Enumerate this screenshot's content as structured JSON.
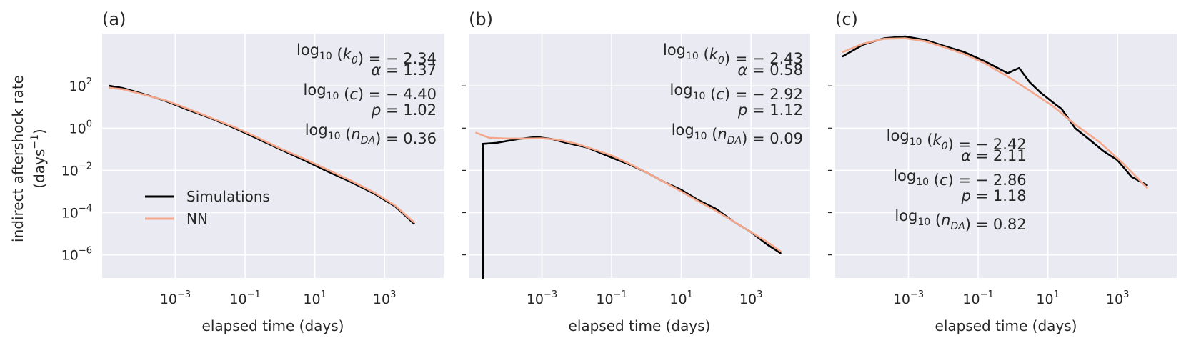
{
  "chart_data": [
    {
      "type": "line",
      "panel": "(a)",
      "xscale": "log",
      "yscale": "log",
      "xlabel": "elapsed time (days)",
      "ylabel": "indirect aftershock rate",
      "ylabel_unit": "(days",
      "ylabel_unit_exp": "−1",
      "ylabel_unit_close": ")",
      "xlim": [
        7.9e-06,
        50000
      ],
      "ylim": [
        8e-08,
        30000
      ],
      "xticks_exp": [
        "−3",
        "−1",
        "1",
        "3"
      ],
      "yticks_exp": [
        "2",
        "0",
        "−2",
        "−4",
        "−6"
      ],
      "show_ytick_labels": true,
      "legend": {
        "position": "lower-left",
        "entries": [
          "Simulations",
          "NN"
        ]
      },
      "annotation_position": "top-right",
      "annotation": [
        {
          "pre": "log",
          "sub": "10",
          "paren": "(k",
          "psub": "0",
          "close": ")",
          "rest": " = − 2.34"
        },
        {
          "pre": "α",
          "sub": "",
          "paren": "",
          "psub": "",
          "close": "",
          "rest": " = 1.37"
        },
        {
          "pre": "log",
          "sub": "10",
          "paren": "(c",
          "psub": "",
          "close": ")",
          "rest": " = − 4.40"
        },
        {
          "pre": "p",
          "sub": "",
          "paren": "",
          "psub": "",
          "close": "",
          "rest": " = 1.02"
        },
        {
          "pre": "log",
          "sub": "10",
          "paren": "(n",
          "psub": "DA",
          "close": ")",
          "rest": " = 0.36"
        }
      ],
      "series": [
        {
          "name": "Simulations",
          "color": "#000000",
          "x": [
            1.3e-05,
            3e-05,
            0.0001,
            0.0005,
            0.002,
            0.01,
            0.05,
            0.2,
            1,
            5,
            20,
            100,
            500,
            2000,
            7000
          ],
          "y": [
            100,
            80,
            45,
            20,
            8,
            3,
            1,
            0.35,
            0.1,
            0.03,
            0.01,
            0.003,
            0.0008,
            0.0002,
            3e-05
          ]
        },
        {
          "name": "NN",
          "color": "#f4a78b",
          "x": [
            1.3e-05,
            3e-05,
            0.0001,
            0.0005,
            0.002,
            0.01,
            0.05,
            0.2,
            1,
            5,
            20,
            100,
            500,
            2000,
            7000
          ],
          "y": [
            80,
            70,
            42,
            21,
            9,
            3.2,
            1.1,
            0.4,
            0.11,
            0.035,
            0.012,
            0.0035,
            0.0009,
            0.00022,
            3.5e-05
          ]
        }
      ]
    },
    {
      "type": "line",
      "panel": "(b)",
      "xscale": "log",
      "yscale": "log",
      "xlabel": "elapsed time (days)",
      "xlim": [
        7.9e-06,
        50000
      ],
      "ylim": [
        8e-08,
        30000
      ],
      "xticks_exp": [
        "−3",
        "−1",
        "1",
        "3"
      ],
      "yticks_exp": [
        "2",
        "0",
        "−2",
        "−4",
        "−6"
      ],
      "show_ytick_labels": false,
      "annotation_position": "top-right",
      "annotation": [
        {
          "pre": "log",
          "sub": "10",
          "paren": "(k",
          "psub": "0",
          "close": ")",
          "rest": " = − 2.43"
        },
        {
          "pre": "α",
          "sub": "",
          "paren": "",
          "psub": "",
          "close": "",
          "rest": " = 0.58"
        },
        {
          "pre": "log",
          "sub": "10",
          "paren": "(c",
          "psub": "",
          "close": ")",
          "rest": " = − 2.92"
        },
        {
          "pre": "p",
          "sub": "",
          "paren": "",
          "psub": "",
          "close": "",
          "rest": " = 1.12"
        },
        {
          "pre": "log",
          "sub": "10",
          "paren": "(n",
          "psub": "DA",
          "close": ")",
          "rest": " = 0.09"
        }
      ],
      "series": [
        {
          "name": "Simulations",
          "color": "#000000",
          "x": [
            2e-05,
            2e-05,
            5e-05,
            0.0002,
            0.0007,
            0.002,
            0.005,
            0.02,
            0.1,
            0.3,
            1,
            3,
            10,
            30,
            100,
            300,
            1000,
            3000,
            7000
          ],
          "y": [
            8e-08,
            0.18,
            0.2,
            0.3,
            0.38,
            0.3,
            0.2,
            0.12,
            0.04,
            0.02,
            0.008,
            0.003,
            0.0012,
            0.0004,
            0.00015,
            4e-05,
            1.2e-05,
            3e-06,
            1.2e-06
          ]
        },
        {
          "name": "NN",
          "color": "#f4a78b",
          "x": [
            1.3e-05,
            3e-05,
            0.0001,
            0.0003,
            0.001,
            0.003,
            0.01,
            0.03,
            0.1,
            0.3,
            1,
            3,
            10,
            30,
            100,
            300,
            1000,
            3000,
            7000
          ],
          "y": [
            0.6,
            0.35,
            0.32,
            0.32,
            0.33,
            0.28,
            0.18,
            0.1,
            0.05,
            0.022,
            0.008,
            0.003,
            0.001,
            0.00035,
            0.00012,
            4e-05,
            1.2e-05,
            4e-06,
            1.5e-06
          ]
        }
      ]
    },
    {
      "type": "line",
      "panel": "(c)",
      "xscale": "log",
      "yscale": "log",
      "xlabel": "elapsed time (days)",
      "xlim": [
        7.9e-06,
        50000
      ],
      "ylim": [
        8e-08,
        30000
      ],
      "xticks_exp": [
        "−3",
        "−1",
        "1",
        "3"
      ],
      "yticks_exp": [
        "2",
        "0",
        "−2",
        "−4",
        "−6"
      ],
      "show_ytick_labels": false,
      "annotation_position": "middle-center",
      "annotation": [
        {
          "pre": "log",
          "sub": "10",
          "paren": "(k",
          "psub": "0",
          "close": ")",
          "rest": " = − 2.42"
        },
        {
          "pre": "α",
          "sub": "",
          "paren": "",
          "psub": "",
          "close": "",
          "rest": " = 2.11"
        },
        {
          "pre": "log",
          "sub": "10",
          "paren": "(c",
          "psub": "",
          "close": ")",
          "rest": " = − 2.86"
        },
        {
          "pre": "p",
          "sub": "",
          "paren": "",
          "psub": "",
          "close": "",
          "rest": " = 1.18"
        },
        {
          "pre": "log",
          "sub": "10",
          "paren": "(n",
          "psub": "DA",
          "close": ")",
          "rest": " = 0.82"
        }
      ],
      "series": [
        {
          "name": "Simulations",
          "color": "#000000",
          "x": [
            1.3e-05,
            5e-05,
            0.0002,
            0.0008,
            0.003,
            0.01,
            0.04,
            0.15,
            0.7,
            1.5,
            3,
            6,
            15,
            25,
            60,
            150,
            400,
            1000,
            2500,
            7000
          ],
          "y": [
            2500,
            9000,
            18000,
            22000,
            15000,
            8000,
            4000,
            1500,
            400,
            700,
            150,
            50,
            15,
            8,
            1,
            0.3,
            0.08,
            0.03,
            0.005,
            0.002
          ]
        },
        {
          "name": "NN",
          "color": "#f4a78b",
          "x": [
            1.3e-05,
            5e-05,
            0.0002,
            0.0008,
            0.003,
            0.01,
            0.04,
            0.15,
            0.7,
            3,
            15,
            60,
            300,
            1500,
            7000
          ],
          "y": [
            4000,
            10000,
            17000,
            18000,
            13000,
            7000,
            3200,
            1200,
            280,
            60,
            10,
            1.5,
            0.22,
            0.02,
            0.0015
          ]
        }
      ]
    }
  ]
}
